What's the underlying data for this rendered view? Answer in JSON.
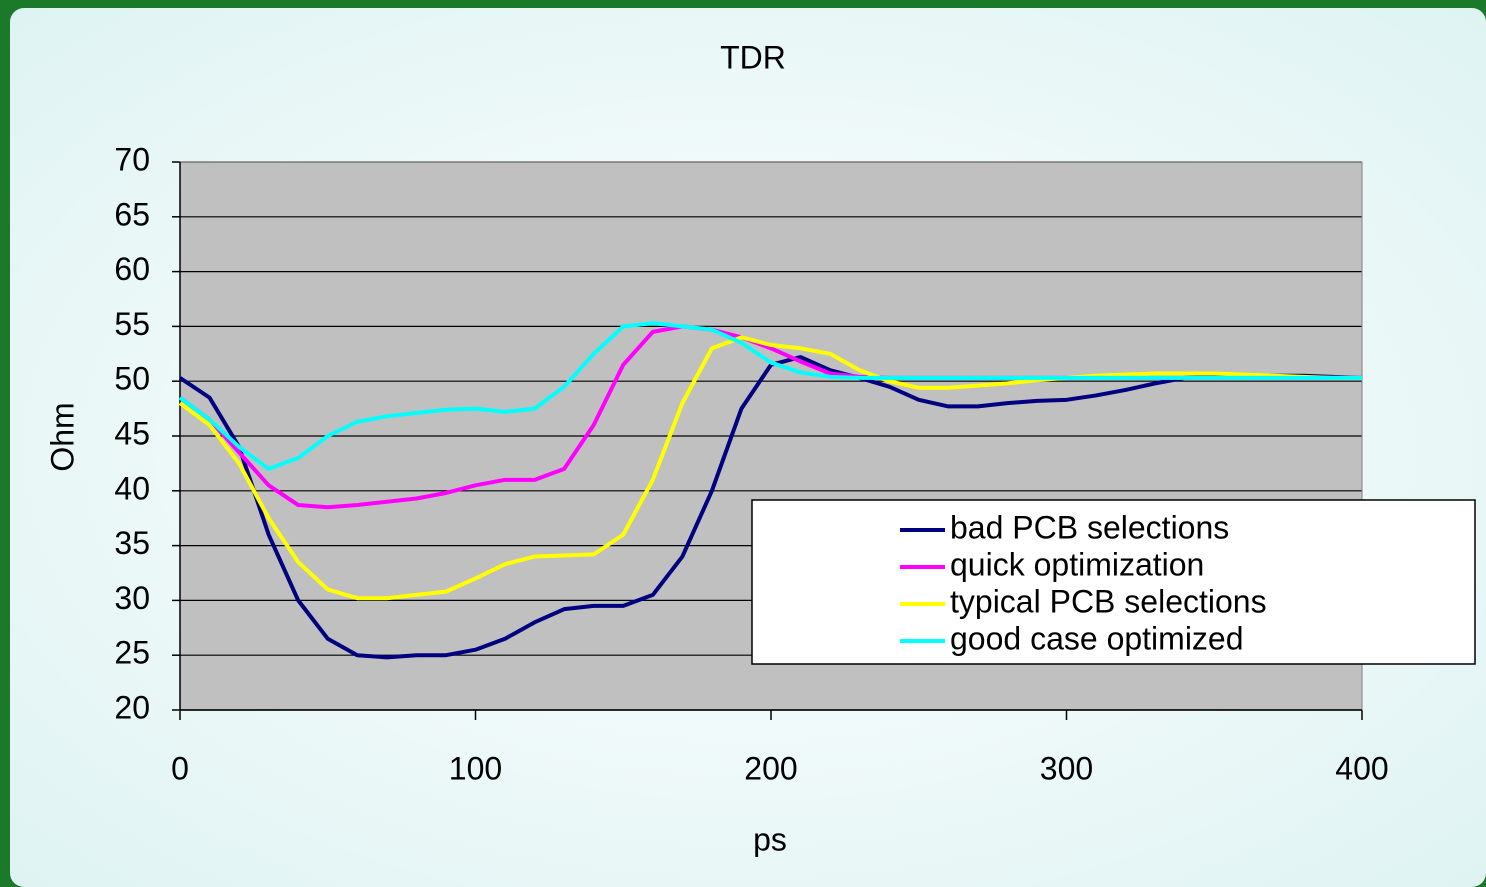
{
  "chart_data": {
    "type": "line",
    "title": "TDR",
    "x_label": "ps",
    "y_label": "Ohm",
    "x": [
      0,
      10,
      20,
      30,
      40,
      50,
      60,
      70,
      80,
      90,
      100,
      110,
      120,
      130,
      140,
      150,
      160,
      170,
      180,
      190,
      200,
      210,
      220,
      230,
      240,
      250,
      260,
      270,
      280,
      290,
      300,
      310,
      320,
      330,
      340,
      350,
      360,
      370,
      380,
      390,
      400
    ],
    "series": [
      {
        "name": "bad PCB selections",
        "color": "#000080",
        "values": [
          50.3,
          48.5,
          44,
          36,
          30,
          26.5,
          25,
          24.8,
          25,
          25,
          25.5,
          26.5,
          28,
          29.2,
          29.5,
          29.5,
          30.5,
          34,
          40,
          47.5,
          51.5,
          52.2,
          51,
          50.3,
          49.5,
          48.3,
          47.7,
          47.7,
          48,
          48.2,
          48.3,
          48.7,
          49.2,
          49.8,
          50.3,
          50.4,
          50.5,
          50.5,
          50.5,
          50.4,
          50.3
        ]
      },
      {
        "name": "quick optimization",
        "color": "#ff00ff",
        "values": [
          48.5,
          46.5,
          43.5,
          40.5,
          38.7,
          38.5,
          38.7,
          39,
          39.3,
          39.8,
          40.5,
          41,
          41,
          42,
          46,
          51.5,
          54.5,
          55,
          54.7,
          54,
          53,
          51.8,
          50.7,
          50.4,
          50.3,
          50.3,
          50.3,
          50.3,
          50.3,
          50.3,
          50.3,
          50.3,
          50.3,
          50.3,
          50.3,
          50.3,
          50.3,
          50.3,
          50.3,
          50.3,
          50.3
        ]
      },
      {
        "name": "typical PCB selections",
        "color": "#ffff00",
        "values": [
          48,
          46,
          42.5,
          37.5,
          33.5,
          31,
          30.2,
          30.2,
          30.5,
          30.8,
          32,
          33.3,
          34,
          34.1,
          34.2,
          36,
          41,
          48,
          53,
          54,
          53.3,
          53,
          52.5,
          51,
          50,
          49.4,
          49.4,
          49.6,
          49.8,
          50.1,
          50.3,
          50.5,
          50.6,
          50.7,
          50.7,
          50.7,
          50.6,
          50.5,
          50.4,
          50.3,
          50.3
        ]
      },
      {
        "name": "good case optimized",
        "color": "#00ffff",
        "values": [
          48.5,
          46.5,
          44,
          42,
          43,
          45,
          46.3,
          46.8,
          47.1,
          47.4,
          47.5,
          47.2,
          47.5,
          49.5,
          52.5,
          55,
          55.3,
          55,
          54.7,
          53.5,
          51.7,
          50.8,
          50.4,
          50.3,
          50.3,
          50.3,
          50.3,
          50.3,
          50.3,
          50.3,
          50.3,
          50.3,
          50.3,
          50.3,
          50.3,
          50.3,
          50.3,
          50.3,
          50.3,
          50.3,
          50.3
        ]
      }
    ],
    "xlim": [
      0,
      400
    ],
    "xticks": [
      0,
      100,
      200,
      300,
      400
    ],
    "ylim": [
      20,
      70
    ],
    "yticks": [
      20,
      25,
      30,
      35,
      40,
      45,
      50,
      55,
      60,
      65,
      70
    ],
    "grid": true,
    "legend": "lower right",
    "plot_color": "#c0c0c0"
  }
}
